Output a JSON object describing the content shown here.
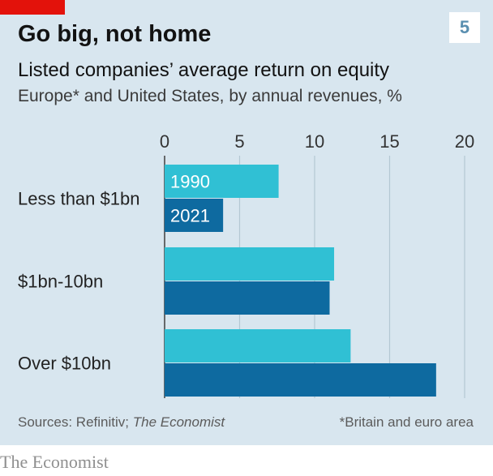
{
  "header": {
    "title": "Go big, not home",
    "badge": "5",
    "subtitle": "Listed companies’ average return on equity",
    "subsubtitle": "Europe* and United States, by annual revenues, %"
  },
  "footer": {
    "source_prefix": "Sources: Refinitiv; ",
    "source_italic": "The Economist",
    "footnote": "*Britain and euro area",
    "brand": "The Economist"
  },
  "colors": {
    "panel": "#d8e6ef",
    "series_1990": "#30c0d4",
    "series_2021": "#0e6aa0",
    "gridline": "#b4c7d3",
    "axis": "#3f3f3f",
    "brand_red": "#e3120b"
  },
  "chart_data": {
    "type": "bar",
    "orientation": "horizontal",
    "categories": [
      "Less than $1bn",
      "$1bn-10bn",
      "Over $10bn"
    ],
    "series": [
      {
        "name": "1990",
        "values": [
          7.6,
          11.3,
          12.4
        ]
      },
      {
        "name": "2021",
        "values": [
          3.9,
          11.0,
          18.1
        ]
      }
    ],
    "xlim": [
      0,
      20
    ],
    "xticks": [
      0,
      5,
      10,
      15,
      20
    ],
    "grid": true,
    "legend": "inline labels on first category bars"
  }
}
